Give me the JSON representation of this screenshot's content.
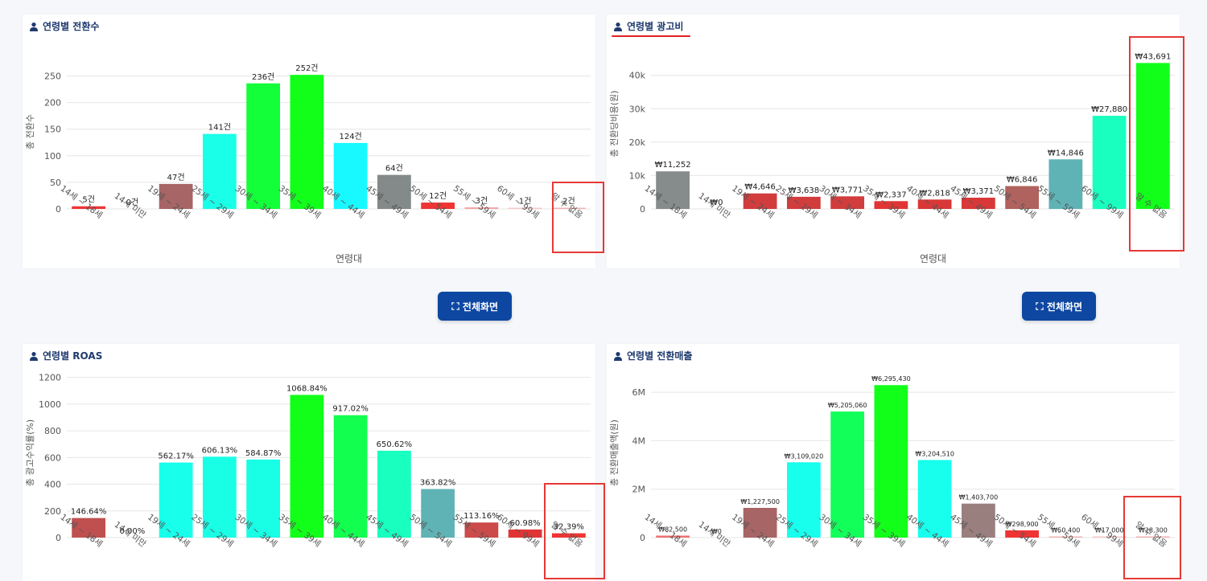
{
  "chart_data": [
    {
      "type": "bar",
      "title": "연령별 전환수",
      "xlabel": "연령대",
      "ylabel": "총 전환수",
      "ylim": [
        0,
        290
      ],
      "yticks": [
        "0",
        "50",
        "100",
        "150",
        "200",
        "250"
      ],
      "ytick_values": [
        0,
        50,
        100,
        150,
        200,
        250
      ],
      "categories": [
        "14세 ~ 18세",
        "14세 미만",
        "19세 ~ 24세",
        "25세 ~ 29세",
        "30세 ~ 34세",
        "35세 ~ 39세",
        "40세 ~ 44세",
        "45세 ~ 49세",
        "50세 ~ 54세",
        "55세 ~ 59세",
        "60세 ~ 99세",
        "알 수 없음"
      ],
      "values": [
        5,
        0,
        47,
        141,
        236,
        252,
        124,
        64,
        12,
        3,
        1,
        2
      ],
      "labels": [
        "5건",
        "0건",
        "47건",
        "141건",
        "236건",
        "252건",
        "124건",
        "64건",
        "12건",
        "3건",
        "1건",
        "2건"
      ],
      "colors": [
        "#ef3434",
        "#e84a4a",
        "#a86565",
        "#1affe8",
        "#12ff3a",
        "#12ff1a",
        "#18f9ff",
        "#848a8a",
        "#ef3434",
        "#f3a5a5",
        "#f6c7c7",
        "#f3b0b0"
      ],
      "grid": true
    },
    {
      "type": "bar",
      "title": "연령별 광고비",
      "xlabel": "연령대",
      "ylabel": "총 전환당비용(원)",
      "ylim": [
        0,
        51000
      ],
      "yticks": [
        "0",
        "10k",
        "20k",
        "30k",
        "40k"
      ],
      "ytick_values": [
        0,
        10000,
        20000,
        30000,
        40000
      ],
      "categories": [
        "14세 ~ 18세",
        "14세 미만",
        "19세 ~ 24세",
        "25세 ~ 29세",
        "30세 ~ 34세",
        "35세 ~ 39세",
        "40세 ~ 44세",
        "45세 ~ 49세",
        "50세 ~ 54세",
        "55세 ~ 59세",
        "60세 ~ 99세",
        "알 수 없음"
      ],
      "values": [
        11252,
        0,
        4646,
        3638,
        3771,
        2337,
        2818,
        3371,
        6846,
        14846,
        27880,
        43691
      ],
      "labels": [
        "₩11,252",
        "₩0",
        "₩4,646",
        "₩3,638",
        "₩3,771",
        "₩2,337",
        "₩2,818",
        "₩3,371",
        "₩6,846",
        "₩14,846",
        "₩27,880",
        "₩43,691"
      ],
      "colors": [
        "#868c8c",
        "#cccccc",
        "#d13c3c",
        "#d13c3c",
        "#d13c3c",
        "#e13535",
        "#d83838",
        "#d83838",
        "#b0625e",
        "#5fb3b5",
        "#18ffc0",
        "#12ff1a"
      ],
      "grid": true
    },
    {
      "type": "bar",
      "title": "연령별 ROAS",
      "xlabel": "",
      "ylabel": "총 광고수익률(%)",
      "ylim": [
        0,
        1270
      ],
      "yticks": [
        "0",
        "200",
        "400",
        "600",
        "800",
        "1000",
        "1200"
      ],
      "ytick_values": [
        0,
        200,
        400,
        600,
        800,
        1000,
        1200
      ],
      "categories": [
        "14세 ~ 18세",
        "14세 미만",
        "19세 ~ 24세",
        "25세 ~ 29세",
        "30세 ~ 34세",
        "35세 ~ 39세",
        "40세 ~ 44세",
        "45세 ~ 49세",
        "50세 ~ 54세",
        "55세 ~ 59세",
        "60세 ~ 99세",
        "알 수 없음"
      ],
      "values": [
        146.64,
        0,
        562.17,
        606.13,
        584.87,
        1068.84,
        917.02,
        650.62,
        363.82,
        113.16,
        60.98,
        32.39
      ],
      "labels": [
        "146.64%",
        "0.00%",
        "562.17%",
        "606.13%",
        "584.87%",
        "1068.84%",
        "917.02%",
        "650.62%",
        "363.82%",
        "113.16%",
        "60.98%",
        "32.39%"
      ],
      "colors": [
        "#c05050",
        "#cccccc",
        "#18ffec",
        "#18ffe6",
        "#18ffe6",
        "#12ff1a",
        "#12ff50",
        "#18ffc0",
        "#5fb3b5",
        "#cc4a4a",
        "#e03535",
        "#ef3434"
      ],
      "grid": true
    },
    {
      "type": "bar",
      "title": "연령별 전환매출",
      "xlabel": "",
      "ylabel": "총 전환매출액(원)",
      "ylim": [
        0,
        7000000
      ],
      "yticks": [
        "0",
        "2M",
        "4M",
        "6M"
      ],
      "ytick_values": [
        0,
        2000000,
        4000000,
        6000000
      ],
      "categories": [
        "14세 ~ 18세",
        "14세 미만",
        "19세 ~ 24세",
        "25세 ~ 29세",
        "30세 ~ 34세",
        "35세 ~ 39세",
        "40세 ~ 44세",
        "45세 ~ 49세",
        "50세 ~ 54세",
        "55세 ~ 59세",
        "60세 ~ 99세",
        "알 수 없음"
      ],
      "values": [
        82500,
        0,
        1227500,
        3109020,
        5205060,
        6295430,
        3204510,
        1403700,
        298900,
        50400,
        17000,
        28300
      ],
      "labels": [
        "₩82,500",
        "₩0",
        "₩1,227,500",
        "₩3,109,020",
        "₩5,205,060",
        "₩6,295,430",
        "₩3,204,510",
        "₩1,403,700",
        "₩298,900",
        "₩50,400",
        "₩17,000",
        "₩28,300"
      ],
      "colors": [
        "#ef7070",
        "#cccccc",
        "#a86565",
        "#18ffee",
        "#12ff5a",
        "#12ff1a",
        "#18ffee",
        "#9a7f7f",
        "#ef3434",
        "#f3b5b5",
        "#f6c7c7",
        "#f3b0b0"
      ],
      "grid": true
    }
  ],
  "buttons": {
    "fullscreen_label_1": "전체화면",
    "fullscreen_label_2": "전체화면"
  },
  "theme": {
    "button_color": "#0d47a1",
    "highlight_color": "#e53935",
    "grid_color": "#e6e6e6",
    "axis_text_color": "#555555"
  }
}
